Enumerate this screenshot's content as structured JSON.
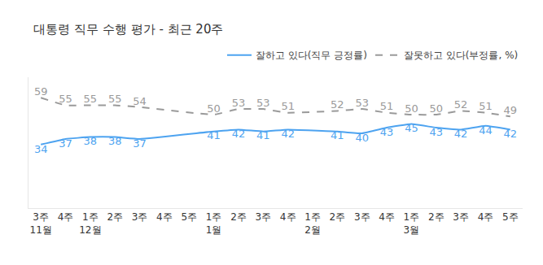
{
  "chart_data": {
    "type": "line",
    "title": "대통령 직무 수행 평가 - 최근 20주",
    "categories": [
      "3주",
      "4주",
      "1주",
      "2주",
      "3주",
      "4주",
      "5주",
      "1주",
      "2주",
      "3주",
      "4주",
      "1주",
      "2주",
      "3주",
      "4주",
      "1주",
      "2주",
      "3주",
      "4주",
      "5주"
    ],
    "category_groups": [
      "11월",
      null,
      "12월",
      null,
      null,
      null,
      null,
      "1월",
      null,
      null,
      null,
      "2월",
      null,
      null,
      null,
      "3월",
      null,
      null,
      null,
      null
    ],
    "series": [
      {
        "name": "잘하고 있다(직무 긍정률)",
        "color": "#4da3f0",
        "line_style": "solid",
        "values": [
          34,
          37,
          38,
          38,
          37,
          null,
          null,
          41,
          42,
          41,
          42,
          null,
          41,
          40,
          43,
          45,
          43,
          42,
          44,
          42
        ]
      },
      {
        "name": "잘못하고 있다(부정률, %)",
        "color": "#9a9a9a",
        "line_style": "dashed",
        "values": [
          59,
          55,
          55,
          55,
          54,
          null,
          null,
          50,
          53,
          53,
          51,
          null,
          52,
          53,
          51,
          50,
          50,
          52,
          51,
          49
        ]
      }
    ],
    "ylim": [
      0,
      70
    ],
    "data_labels": true,
    "tick_labels": "x",
    "grid": false,
    "legend": "top-right"
  }
}
